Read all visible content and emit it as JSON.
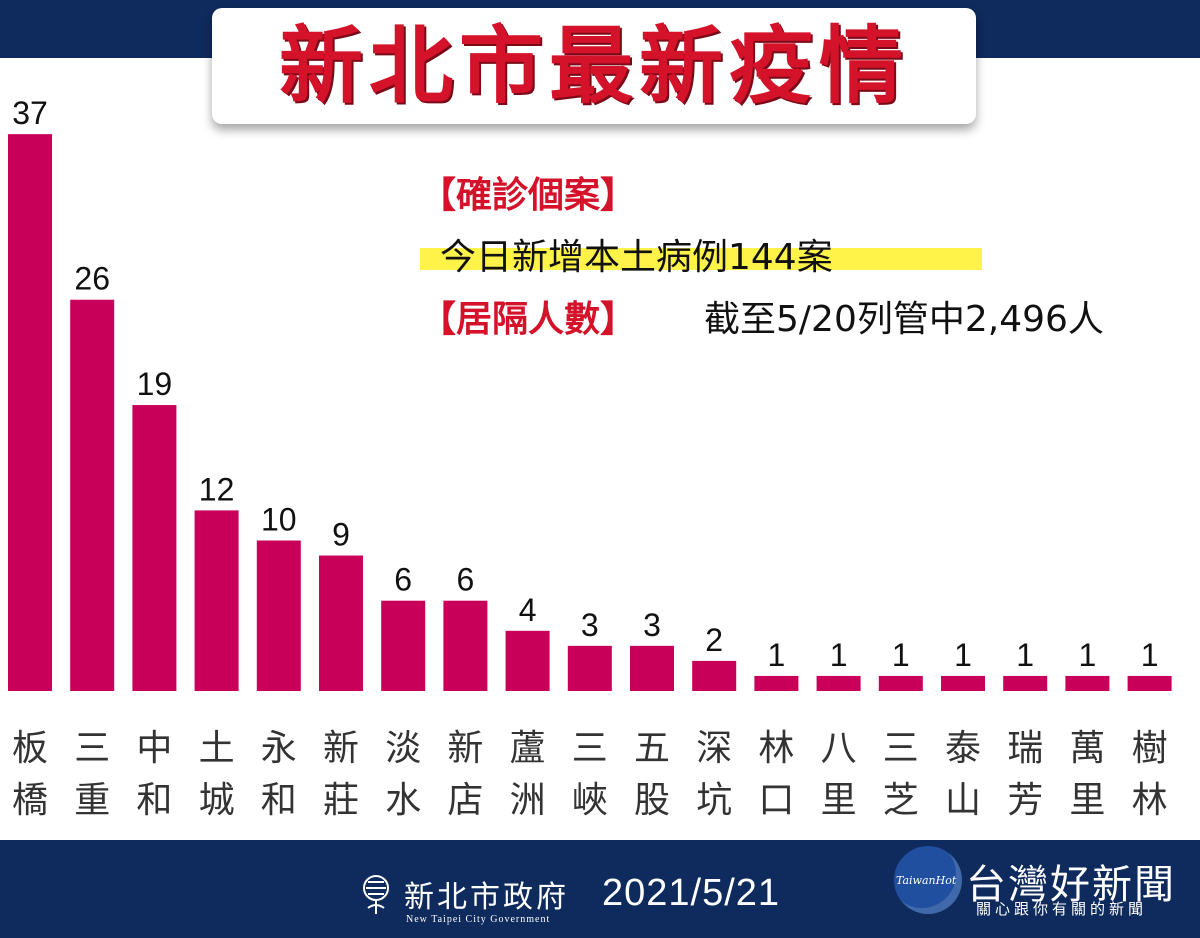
{
  "header": {
    "title": "新北市最新疫情"
  },
  "info": {
    "confirmed_label": "【確診個案】",
    "confirmed_text": "今日新增本土病例144案",
    "isolation_label": "【居隔人數】",
    "isolation_text": "截至5/20列管中2,496人"
  },
  "chart_data": {
    "type": "bar",
    "categories": [
      "板橋",
      "三重",
      "中和",
      "土城",
      "永和",
      "新莊",
      "淡水",
      "新店",
      "蘆洲",
      "三峽",
      "五股",
      "深坑",
      "林口",
      "八里",
      "三芝",
      "泰山",
      "瑞芳",
      "萬里",
      "樹林"
    ],
    "values": [
      37,
      26,
      19,
      12,
      10,
      9,
      6,
      6,
      4,
      3,
      3,
      2,
      1,
      1,
      1,
      1,
      1,
      1,
      1
    ],
    "bar_color": "#c8005a",
    "label_color": "#111111",
    "category_color": "#333333"
  },
  "footer": {
    "gov_name": "新北市政府",
    "gov_name_en": "New Taipei City Government",
    "date": "2021/5/21",
    "brand_mark": "TaiwanHot",
    "brand_name": "台灣好新聞",
    "brand_slogan": "關心跟你有關的新聞",
    "background_color": "#0f2a5c"
  }
}
